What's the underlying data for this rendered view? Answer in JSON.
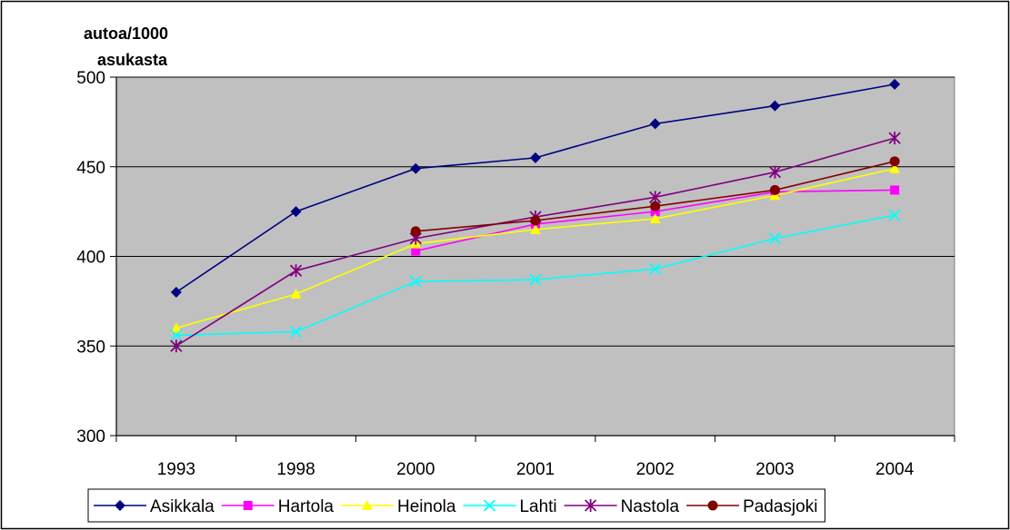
{
  "chart_data": {
    "type": "line",
    "title": "",
    "ylabel": [
      "autoa/1000",
      "asukasta"
    ],
    "xlabel": "",
    "categories": [
      "1993",
      "1998",
      "2000",
      "2001",
      "2002",
      "2003",
      "2004"
    ],
    "ylim": [
      300,
      500
    ],
    "yticks": [
      300,
      350,
      400,
      450,
      500
    ],
    "grid": true,
    "plot_background": "#c0c0c0",
    "legend_position": "bottom",
    "series": [
      {
        "name": "Asikkala",
        "color": "#000080",
        "marker": "diamond",
        "values": [
          380,
          425,
          449,
          455,
          474,
          484,
          496
        ]
      },
      {
        "name": "Hartola",
        "color": "#ff00ff",
        "marker": "square",
        "values": [
          null,
          null,
          403,
          418,
          425,
          436,
          437
        ]
      },
      {
        "name": "Heinola",
        "color": "#ffff00",
        "marker": "triangle",
        "values": [
          360,
          379,
          407,
          415,
          421,
          434,
          449
        ]
      },
      {
        "name": "Lahti",
        "color": "#00ffff",
        "marker": "x",
        "values": [
          356,
          358,
          386,
          387,
          393,
          410,
          423
        ]
      },
      {
        "name": "Nastola",
        "color": "#800080",
        "marker": "star",
        "values": [
          350,
          392,
          410,
          422,
          433,
          447,
          466
        ]
      },
      {
        "name": "Padasjoki",
        "color": "#800000",
        "marker": "circle",
        "values": [
          null,
          null,
          414,
          420,
          428,
          437,
          453
        ]
      }
    ]
  }
}
